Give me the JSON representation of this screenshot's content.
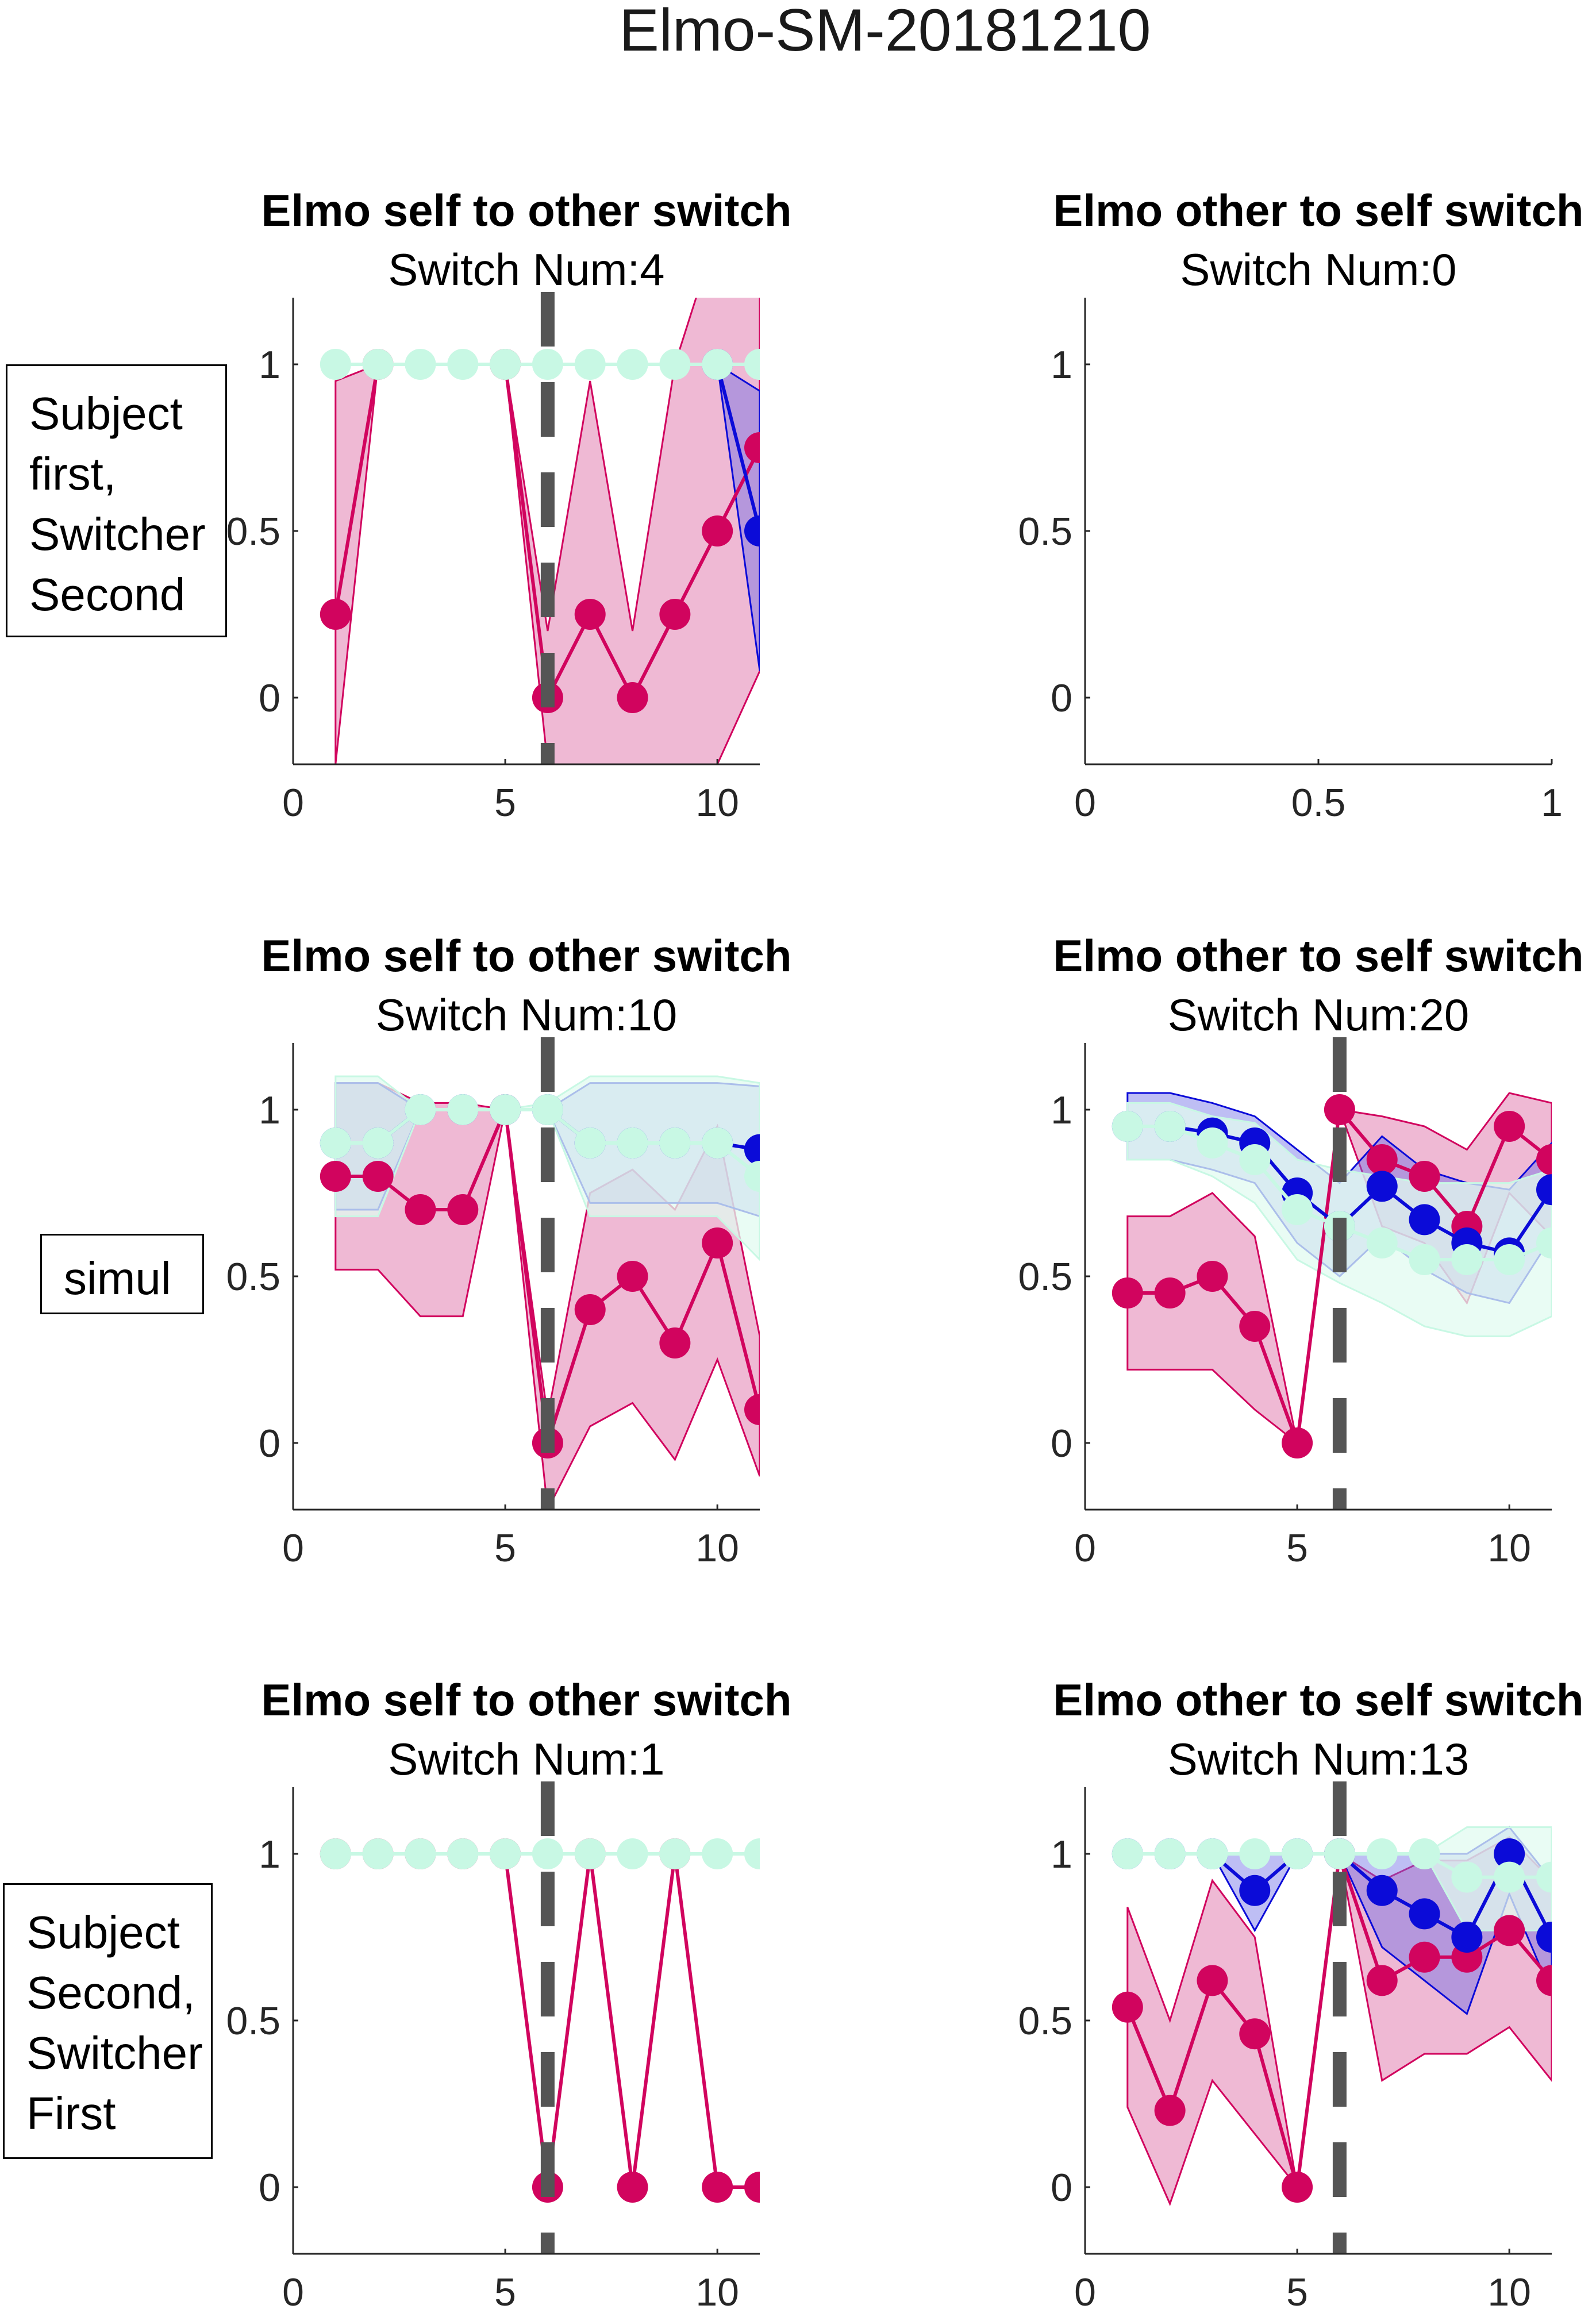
{
  "figure": {
    "supertitle": "Elmo-SM-20181210"
  },
  "row_labels": [
    {
      "lines": [
        "Subject",
        "first,",
        "Switcher",
        "Second"
      ]
    },
    {
      "lines": [
        "simul"
      ]
    },
    {
      "lines": [
        "Subject",
        "Second,",
        "Switcher",
        "First"
      ]
    }
  ],
  "colors": {
    "magenta": "#d1045e",
    "magenta_fill": "#eaa2c6",
    "blue": "#0b0bd8",
    "blue_fill": "#6e6ee6",
    "mint": "#c8f8e4",
    "mint_fill": "#e2fbf0",
    "switch_line": "#555555",
    "axis": "#262626"
  },
  "chart_data": [
    {
      "type": "line",
      "title": "Elmo self to other switch",
      "subtitle": "Switch Num:4",
      "xlim": [
        0,
        11
      ],
      "ylim": [
        -0.2,
        1.2
      ],
      "xticks": [
        "0",
        "5",
        "10"
      ],
      "yticks": [
        "0",
        "0.5",
        "1"
      ],
      "xtick_values": [
        0,
        5,
        10
      ],
      "ytick_values": [
        0,
        0.5,
        1
      ],
      "switch_x": 6,
      "series": [
        {
          "color": "magenta",
          "x": [
            1,
            2,
            3,
            4,
            5,
            6,
            7,
            8,
            9,
            10,
            11
          ],
          "values": [
            0.25,
            1,
            null,
            null,
            1,
            0,
            0.25,
            0,
            0.25,
            0.5,
            0.75
          ],
          "band_upper": [
            0.95,
            1,
            null,
            null,
            1,
            0.2,
            0.95,
            0.2,
            1,
            1.4,
            1.4
          ],
          "band_lower": [
            -0.2,
            1,
            null,
            null,
            1,
            -0.2,
            -0.2,
            -0.2,
            -0.2,
            -0.2,
            0.08
          ]
        },
        {
          "color": "blue",
          "x": [
            10,
            11
          ],
          "values": [
            1,
            0.5
          ],
          "band_upper": [
            1,
            0.92
          ],
          "band_lower": [
            1,
            0.08
          ]
        },
        {
          "color": "mint",
          "x": [
            1,
            2,
            3,
            4,
            5,
            6,
            7,
            8,
            9,
            10,
            11
          ],
          "values": [
            1,
            1,
            1,
            1,
            1,
            1,
            1,
            1,
            1,
            1,
            1
          ]
        }
      ]
    },
    {
      "type": "line",
      "title": "Elmo other to self switch",
      "subtitle": "Switch Num:0",
      "xlim": [
        0,
        1
      ],
      "ylim": [
        -0.2,
        1.2
      ],
      "xticks": [
        "0",
        "0.5",
        "1"
      ],
      "yticks": [
        "0",
        "0.5",
        "1"
      ],
      "xtick_values": [
        0,
        0.5,
        1
      ],
      "ytick_values": [
        0,
        0.5,
        1
      ],
      "series": []
    },
    {
      "type": "line",
      "title": "Elmo self to other switch",
      "subtitle": "Switch Num:10",
      "xlim": [
        0,
        11
      ],
      "ylim": [
        -0.2,
        1.2
      ],
      "xticks": [
        "0",
        "5",
        "10"
      ],
      "yticks": [
        "0",
        "0.5",
        "1"
      ],
      "xtick_values": [
        0,
        5,
        10
      ],
      "ytick_values": [
        0,
        0.5,
        1
      ],
      "switch_x": 6,
      "series": [
        {
          "color": "magenta",
          "x": [
            1,
            2,
            3,
            4,
            5,
            6,
            7,
            8,
            9,
            10,
            11
          ],
          "values": [
            0.8,
            0.8,
            0.7,
            0.7,
            1,
            0,
            0.4,
            0.5,
            0.3,
            0.6,
            0.1
          ],
          "band_upper": [
            1.08,
            1.08,
            1.02,
            1.02,
            1,
            0.08,
            0.75,
            0.82,
            0.7,
            0.95,
            0.32
          ],
          "band_lower": [
            0.52,
            0.52,
            0.38,
            0.38,
            1,
            -0.2,
            0.05,
            0.12,
            -0.05,
            0.25,
            -0.1
          ]
        },
        {
          "color": "blue",
          "x": [
            1,
            2,
            3,
            4,
            5,
            6,
            7,
            8,
            9,
            10,
            11
          ],
          "values": [
            0.9,
            0.9,
            1,
            1,
            1,
            1,
            0.9,
            0.9,
            0.9,
            0.9,
            0.88
          ],
          "band_upper": [
            1.08,
            1.08,
            1,
            1,
            1,
            1,
            1.08,
            1.08,
            1.08,
            1.08,
            1.07
          ],
          "band_lower": [
            0.7,
            0.7,
            1,
            1,
            1,
            1,
            0.72,
            0.72,
            0.72,
            0.72,
            0.68
          ]
        },
        {
          "color": "mint",
          "x": [
            1,
            2,
            3,
            4,
            5,
            6,
            7,
            8,
            9,
            10,
            11
          ],
          "values": [
            0.9,
            0.9,
            1,
            1,
            1,
            1,
            0.9,
            0.9,
            0.9,
            0.9,
            0.8
          ],
          "band_upper": [
            1.1,
            1.1,
            1,
            1,
            1,
            1.02,
            1.1,
            1.1,
            1.1,
            1.1,
            1.08
          ],
          "band_lower": [
            0.68,
            0.68,
            1,
            1,
            1,
            1,
            0.68,
            0.68,
            0.68,
            0.68,
            0.55
          ]
        }
      ]
    },
    {
      "type": "line",
      "title": "Elmo other to self switch",
      "subtitle": "Switch Num:20",
      "xlim": [
        0,
        11
      ],
      "ylim": [
        -0.2,
        1.2
      ],
      "xticks": [
        "0",
        "5",
        "10"
      ],
      "yticks": [
        "0",
        "0.5",
        "1"
      ],
      "xtick_values": [
        0,
        5,
        10
      ],
      "ytick_values": [
        0,
        0.5,
        1
      ],
      "switch_x": 6,
      "series": [
        {
          "color": "magenta",
          "x": [
            1,
            2,
            3,
            4,
            5,
            6,
            7,
            8,
            9,
            10,
            11
          ],
          "values": [
            0.45,
            0.45,
            0.5,
            0.35,
            0,
            1,
            0.85,
            0.8,
            0.65,
            0.95,
            0.85
          ],
          "band_upper": [
            0.68,
            0.68,
            0.75,
            0.62,
            0,
            1,
            0.98,
            0.95,
            0.88,
            1.05,
            1.02
          ],
          "band_lower": [
            0.22,
            0.22,
            0.22,
            0.1,
            0,
            1,
            0.65,
            0.6,
            0.42,
            0.75,
            0.62
          ]
        },
        {
          "color": "blue",
          "x": [
            1,
            2,
            3,
            4,
            5,
            6,
            7,
            8,
            9,
            10,
            11
          ],
          "values": [
            0.95,
            0.95,
            0.93,
            0.9,
            0.75,
            0.65,
            0.77,
            0.67,
            0.6,
            0.57,
            0.76
          ],
          "band_upper": [
            1.05,
            1.05,
            1.02,
            0.98,
            0.88,
            0.78,
            0.92,
            0.82,
            0.78,
            0.76,
            0.9
          ],
          "band_lower": [
            0.85,
            0.85,
            0.82,
            0.78,
            0.6,
            0.5,
            0.62,
            0.52,
            0.45,
            0.42,
            0.62
          ]
        },
        {
          "color": "mint",
          "x": [
            1,
            2,
            3,
            4,
            5,
            6,
            7,
            8,
            9,
            10,
            11
          ],
          "values": [
            0.95,
            0.95,
            0.9,
            0.85,
            0.7,
            0.65,
            0.6,
            0.55,
            0.55,
            0.55,
            0.6
          ],
          "band_upper": [
            1.02,
            1.02,
            0.98,
            0.96,
            0.85,
            0.82,
            0.8,
            0.78,
            0.78,
            0.78,
            0.82
          ],
          "band_lower": [
            0.85,
            0.85,
            0.8,
            0.72,
            0.55,
            0.48,
            0.42,
            0.35,
            0.32,
            0.32,
            0.38
          ]
        }
      ]
    },
    {
      "type": "line",
      "title": "Elmo self to other switch",
      "subtitle": "Switch Num:1",
      "xlim": [
        0,
        11
      ],
      "ylim": [
        -0.2,
        1.2
      ],
      "xticks": [
        "0",
        "5",
        "10"
      ],
      "yticks": [
        "0",
        "0.5",
        "1"
      ],
      "xtick_values": [
        0,
        5,
        10
      ],
      "ytick_values": [
        0,
        0.5,
        1
      ],
      "switch_x": 6,
      "series": [
        {
          "color": "magenta",
          "x": [
            1,
            2,
            3,
            4,
            5,
            6,
            7,
            8,
            9,
            10,
            11
          ],
          "values": [
            1,
            1,
            1,
            1,
            1,
            0,
            1,
            0,
            1,
            0,
            0
          ]
        },
        {
          "color": "mint",
          "x": [
            1,
            2,
            3,
            4,
            5,
            6,
            7,
            8,
            9,
            10,
            11
          ],
          "values": [
            1,
            1,
            1,
            1,
            1,
            1,
            1,
            1,
            1,
            1,
            1
          ]
        }
      ]
    },
    {
      "type": "line",
      "title": "Elmo other to self switch",
      "subtitle": "Switch Num:13",
      "xlim": [
        0,
        11
      ],
      "ylim": [
        -0.2,
        1.2
      ],
      "xticks": [
        "0",
        "5",
        "10"
      ],
      "yticks": [
        "0",
        "0.5",
        "1"
      ],
      "xtick_values": [
        0,
        5,
        10
      ],
      "ytick_values": [
        0,
        0.5,
        1
      ],
      "switch_x": 6,
      "series": [
        {
          "color": "magenta",
          "x": [
            1,
            2,
            3,
            4,
            5,
            6,
            7,
            8,
            9,
            10,
            11
          ],
          "values": [
            0.54,
            0.23,
            0.62,
            0.46,
            0,
            1,
            0.62,
            0.69,
            0.69,
            0.77,
            0.62
          ],
          "band_upper": [
            0.84,
            0.5,
            0.92,
            0.75,
            0,
            1,
            0.92,
            0.98,
            0.98,
            1.05,
            0.92
          ],
          "band_lower": [
            0.24,
            -0.05,
            0.32,
            0.16,
            0,
            1,
            0.32,
            0.4,
            0.4,
            0.48,
            0.32
          ]
        },
        {
          "color": "blue",
          "x": [
            1,
            2,
            3,
            4,
            5,
            6,
            7,
            8,
            9,
            10,
            11
          ],
          "values": [
            1,
            1,
            1,
            0.89,
            1,
            1,
            0.89,
            0.82,
            0.75,
            1,
            0.75
          ],
          "band_upper": [
            1,
            1,
            1,
            1,
            1,
            1,
            1,
            1,
            1,
            1.08,
            0.92
          ],
          "band_lower": [
            1,
            1,
            1,
            0.77,
            1,
            1,
            0.72,
            0.62,
            0.52,
            0.88,
            0.58
          ]
        },
        {
          "color": "mint",
          "x": [
            1,
            2,
            3,
            4,
            5,
            6,
            7,
            8,
            9,
            10,
            11
          ],
          "values": [
            1,
            1,
            1,
            1,
            1,
            1,
            1,
            1,
            0.93,
            0.93,
            0.93
          ],
          "band_upper": [
            1,
            1,
            1,
            1,
            1,
            1,
            1,
            1,
            1.08,
            1.08,
            1.08
          ],
          "band_lower": [
            1,
            1,
            1,
            1,
            1,
            1,
            1,
            1,
            0.77,
            0.77,
            0.77
          ]
        }
      ]
    }
  ]
}
